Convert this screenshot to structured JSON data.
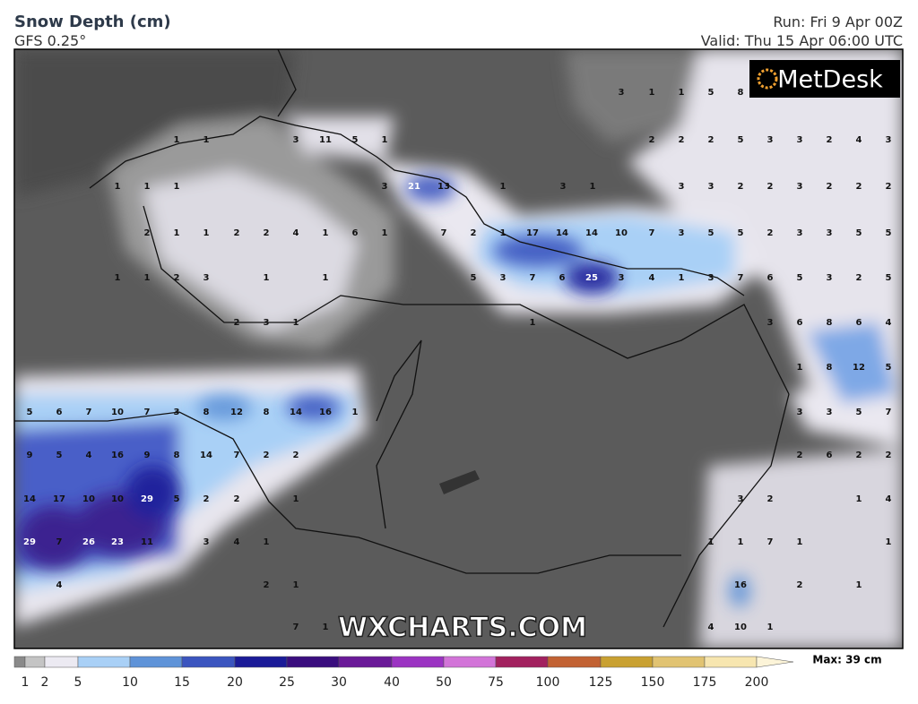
{
  "header": {
    "title": "Snow Depth (cm)",
    "model": "GFS 0.25°",
    "run": "Run: Fri 9 Apr 00Z",
    "valid": "Valid: Thu 15 Apr 06:00 UTC"
  },
  "logo": "MetDesk",
  "watermark": "WXCHARTS.COM",
  "map": {
    "labels": [
      3,
      1,
      1,
      5,
      8,
      1,
      1,
      3,
      11,
      5,
      1,
      2,
      2,
      2,
      5,
      3,
      3,
      2,
      4,
      3,
      1,
      1,
      1,
      3,
      21,
      13,
      1,
      3,
      1,
      3,
      3,
      2,
      2,
      3,
      2,
      2,
      2,
      2,
      1,
      1,
      2,
      2,
      4,
      1,
      6,
      1,
      7,
      2,
      1,
      17,
      14,
      14,
      10,
      7,
      3,
      5,
      5,
      2,
      3,
      3,
      5,
      5,
      1,
      1,
      2,
      3,
      1,
      1,
      5,
      3,
      7,
      6,
      25,
      3,
      4,
      1,
      3,
      7,
      6,
      5,
      3,
      2,
      5,
      2,
      3,
      1,
      1,
      3,
      6,
      8,
      6,
      4,
      1,
      8,
      12,
      5,
      5,
      6,
      7,
      10,
      7,
      3,
      8,
      12,
      8,
      14,
      16,
      1,
      3,
      3,
      5,
      7,
      9,
      5,
      4,
      16,
      9,
      8,
      14,
      7,
      2,
      2,
      2,
      6,
      2,
      2,
      14,
      17,
      10,
      10,
      29,
      5,
      2,
      2,
      1,
      3,
      2,
      1,
      4,
      29,
      7,
      26,
      23,
      11,
      3,
      4,
      1,
      1,
      1,
      7,
      1,
      1,
      4,
      2,
      1,
      16,
      2,
      1,
      7,
      1,
      4,
      10,
      1
    ]
  },
  "colorbar": {
    "ticks": [
      1,
      2,
      5,
      10,
      15,
      20,
      25,
      30,
      40,
      50,
      75,
      100,
      125,
      150,
      175,
      200
    ],
    "colors": [
      "#8a8a8a",
      "#c4c4c4",
      "#eceaf2",
      "#a9d0f6",
      "#5f93d8",
      "#3b55bf",
      "#1b1b98",
      "#3a0e7e",
      "#6a1a98",
      "#9b33c2",
      "#d274d8",
      "#a2215f",
      "#c26233",
      "#c9a132",
      "#e1c372",
      "#f7e6b0",
      "#fcf4d8"
    ],
    "max_label": "Max: 39 cm"
  }
}
